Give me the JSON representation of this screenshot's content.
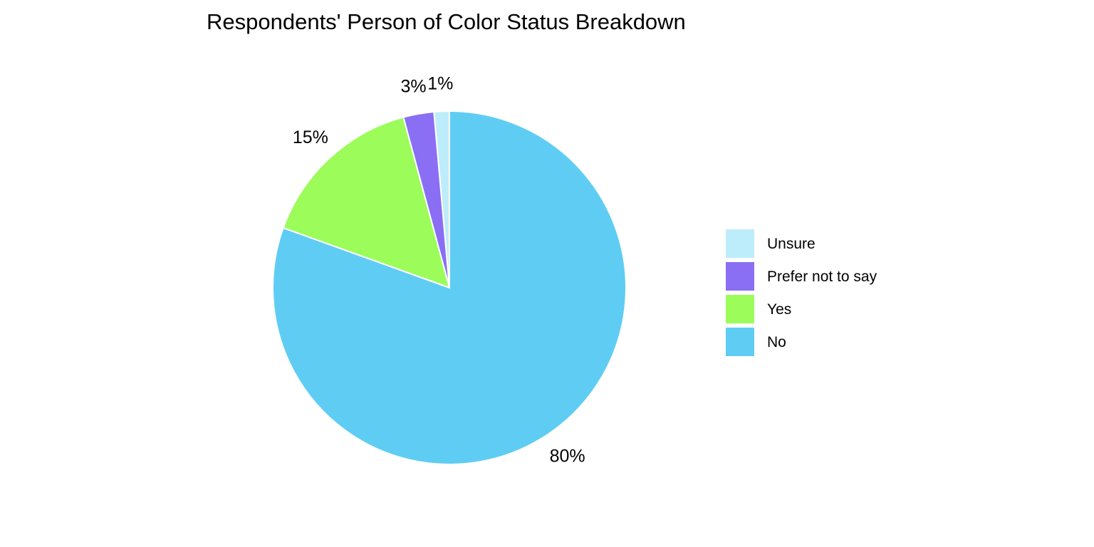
{
  "chart_data": {
    "type": "pie",
    "title": "Respondents' Person of Color Status Breakdown",
    "categories": [
      "Unsure",
      "Prefer not to say",
      "Yes",
      "No"
    ],
    "values": [
      1.4,
      2.8,
      15.3,
      80.5
    ],
    "labels": [
      "1%",
      "3%",
      "15%",
      "80%"
    ],
    "colors": [
      "#BDEDFB",
      "#8A6EF4",
      "#9BFC5A",
      "#5FCDF3"
    ],
    "start": "12 o'clock",
    "direction": "counterclockwise",
    "legend": {
      "position": "right",
      "entries": [
        "Unsure",
        "Prefer not to say",
        "Yes",
        "No"
      ]
    }
  }
}
